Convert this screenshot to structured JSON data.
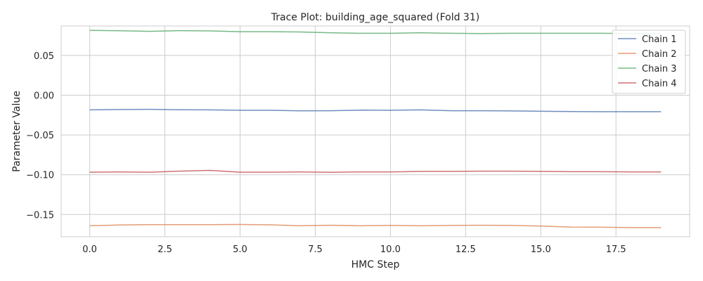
{
  "chart_data": {
    "type": "line",
    "title": "Trace Plot: building_age_squared (Fold 31)",
    "xlabel": "HMC Step",
    "ylabel": "Parameter Value",
    "xlim": [
      -0.95,
      19.95
    ],
    "ylim": [
      -0.178,
      0.087
    ],
    "xticks": [
      0.0,
      2.5,
      5.0,
      7.5,
      10.0,
      12.5,
      15.0,
      17.5
    ],
    "xtick_labels": [
      "0.0",
      "2.5",
      "5.0",
      "7.5",
      "10.0",
      "12.5",
      "15.0",
      "17.5"
    ],
    "yticks": [
      0.05,
      0.0,
      -0.05,
      -0.1,
      -0.15
    ],
    "ytick_labels": [
      "0.05",
      "0.00",
      "−0.05",
      "−0.10",
      "−0.15"
    ],
    "grid": true,
    "legend_position": "top-right",
    "x": [
      0,
      1,
      2,
      3,
      4,
      5,
      6,
      7,
      8,
      9,
      10,
      11,
      12,
      13,
      14,
      15,
      16,
      17,
      18,
      19
    ],
    "series": [
      {
        "name": "Chain 1",
        "color": "#4c72b0",
        "values": [
          -0.0185,
          -0.018,
          -0.0178,
          -0.0183,
          -0.0185,
          -0.019,
          -0.019,
          -0.0197,
          -0.0195,
          -0.0188,
          -0.019,
          -0.0185,
          -0.0195,
          -0.0195,
          -0.0198,
          -0.0202,
          -0.0205,
          -0.0208,
          -0.0208,
          -0.0208
        ]
      },
      {
        "name": "Chain 2",
        "color": "#dd8452",
        "values": [
          -0.1642,
          -0.1632,
          -0.1628,
          -0.1628,
          -0.1628,
          -0.1625,
          -0.163,
          -0.1642,
          -0.1635,
          -0.1642,
          -0.1638,
          -0.1642,
          -0.1638,
          -0.1635,
          -0.1638,
          -0.1645,
          -0.1658,
          -0.166,
          -0.1665,
          -0.1665
        ]
      },
      {
        "name": "Chain 3",
        "color": "#55a868",
        "values": [
          0.0815,
          0.081,
          0.0803,
          0.0812,
          0.0808,
          0.0798,
          0.0798,
          0.0795,
          0.0785,
          0.0778,
          0.0778,
          0.0785,
          0.0778,
          0.0775,
          0.0778,
          0.0778,
          0.0778,
          0.0778,
          0.0775,
          0.077
        ]
      },
      {
        "name": "Chain 4",
        "color": "#c44e52",
        "values": [
          -0.0968,
          -0.0965,
          -0.0968,
          -0.0955,
          -0.0945,
          -0.0968,
          -0.0968,
          -0.0965,
          -0.097,
          -0.0965,
          -0.0965,
          -0.0958,
          -0.0958,
          -0.0955,
          -0.0955,
          -0.0958,
          -0.0962,
          -0.0962,
          -0.0965,
          -0.0965
        ]
      }
    ]
  }
}
